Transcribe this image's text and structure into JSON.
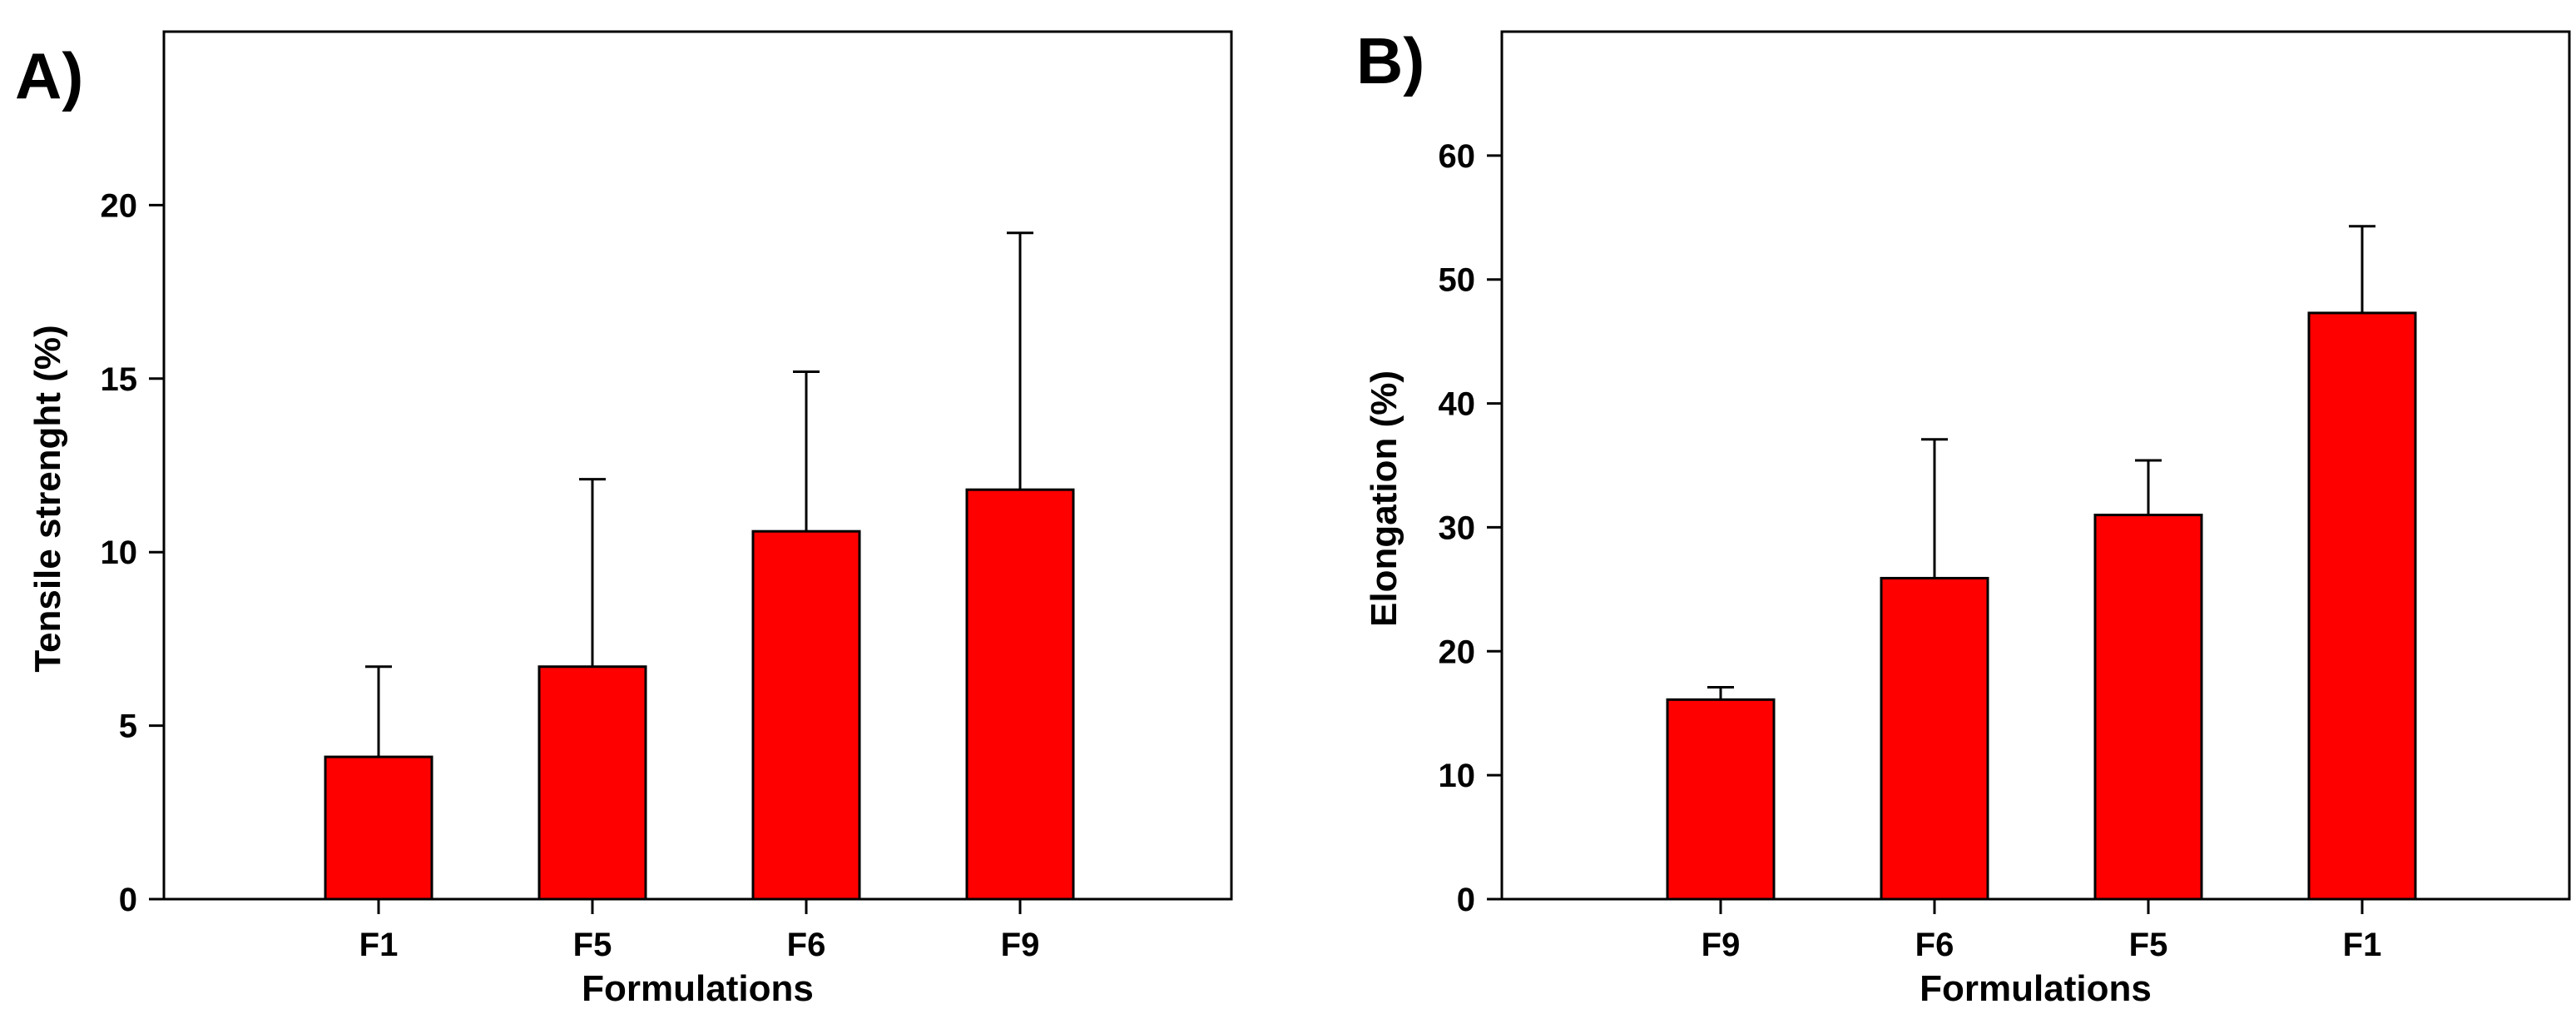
{
  "colors": {
    "bar": "#ff0000",
    "axis": "#000000",
    "background": "#ffffff"
  },
  "chart_data": [
    {
      "type": "bar",
      "panel_label": "A)",
      "xlabel": "Formulations",
      "ylabel": "Tensile strenght (%)",
      "ylim": [
        0,
        25
      ],
      "yticks": [
        0,
        5,
        10,
        15,
        20
      ],
      "categories": [
        "F1",
        "F5",
        "F6",
        "F9"
      ],
      "series": [
        {
          "name": "Tensile strenght",
          "values": [
            4.1,
            6.7,
            10.6,
            11.8
          ],
          "errors": [
            2.6,
            5.4,
            4.6,
            7.4
          ]
        }
      ]
    },
    {
      "type": "bar",
      "panel_label": "B)",
      "xlabel": "Formulations",
      "ylabel": "Elongation (%)",
      "ylim": [
        0,
        70
      ],
      "yticks": [
        0,
        10,
        20,
        30,
        40,
        50,
        60
      ],
      "categories": [
        "F9",
        "F6",
        "F5",
        "F1"
      ],
      "series": [
        {
          "name": "Elongation",
          "values": [
            16.1,
            25.9,
            31.0,
            47.3
          ],
          "errors": [
            1.0,
            11.2,
            4.4,
            7.0
          ]
        }
      ]
    }
  ]
}
